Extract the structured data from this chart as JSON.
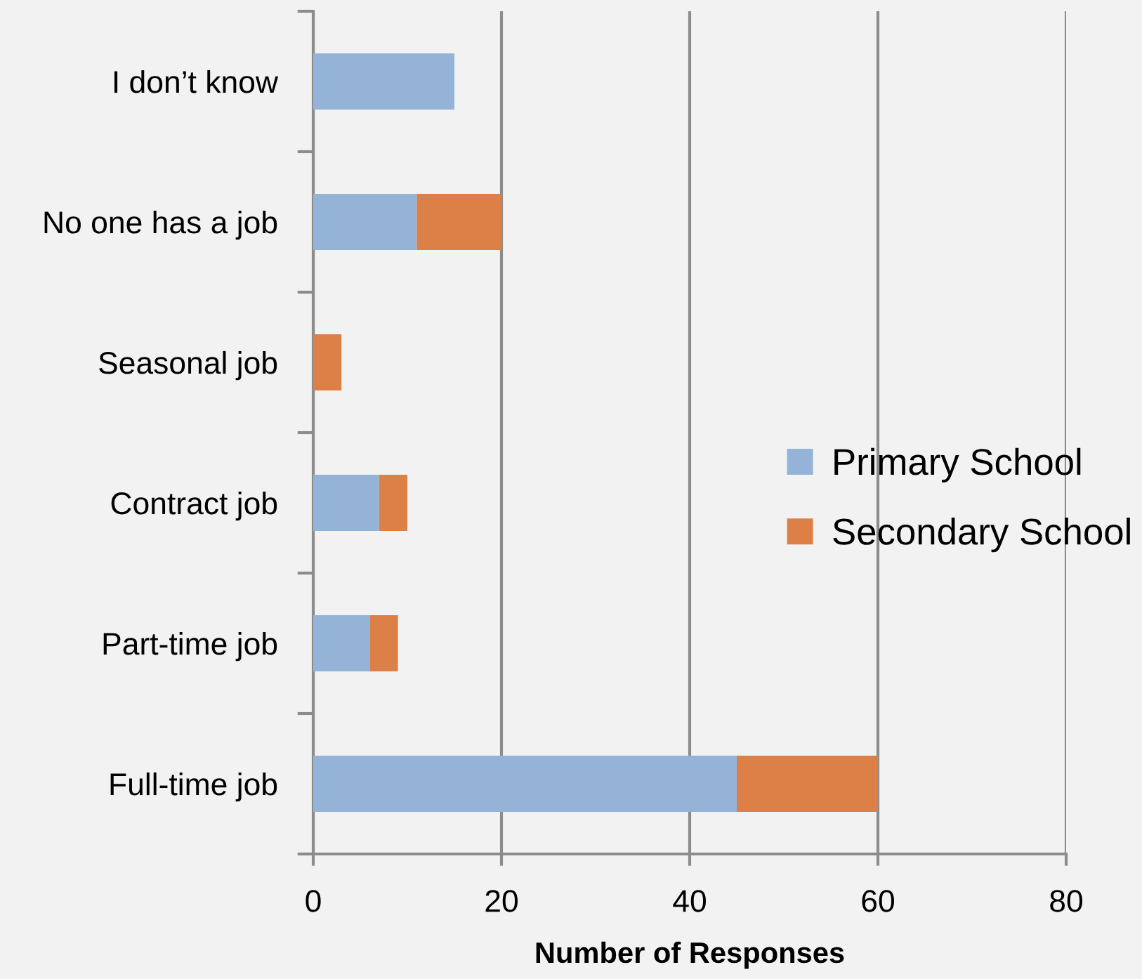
{
  "chart_data": {
    "type": "bar",
    "orientation": "horizontal",
    "stacked": true,
    "xlabel": "Number of Responses",
    "categories": [
      "I don’t know",
      "No one has a job",
      "Seasonal job",
      "Contract job",
      "Part-time job",
      "Full-time job"
    ],
    "series": [
      {
        "name": "Primary School",
        "color": "#95b3d7",
        "values": [
          15,
          11,
          null,
          7,
          6,
          45
        ]
      },
      {
        "name": "Secondary School",
        "color": "#dd8047",
        "values": [
          null,
          9,
          3,
          3,
          3,
          15
        ]
      }
    ],
    "xlim": [
      0,
      80
    ],
    "xticks": [
      0,
      20,
      40,
      60,
      80
    ],
    "grid": "x",
    "legend": "right"
  }
}
